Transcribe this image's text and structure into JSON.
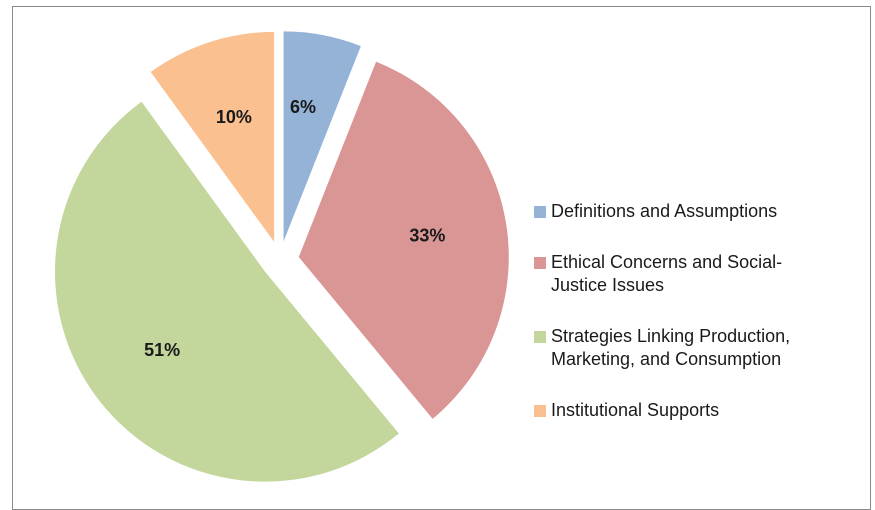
{
  "chart_data": {
    "type": "pie",
    "title": "",
    "legend_position": "right",
    "slices": [
      {
        "label": "Definitions and Assumptions",
        "value": 6,
        "display": "6%",
        "color": "#95b3d7"
      },
      {
        "label": "Ethical Concerns and Social-Justice Issues",
        "value": 33,
        "display": "33%",
        "color": "#d99694"
      },
      {
        "label": "Strategies Linking Production, Marketing, and Consumption",
        "value": 51,
        "display": "51%",
        "color": "#c3d69b"
      },
      {
        "label": "Institutional Supports",
        "value": 10,
        "display": "10%",
        "color": "#fac090"
      }
    ],
    "legend": [
      {
        "lines": [
          "Definitions and Assumptions"
        ]
      },
      {
        "lines": [
          "Ethical Concerns and Social-",
          "Justice Issues"
        ]
      },
      {
        "lines": [
          "Strategies Linking Production,",
          "Marketing, and Consumption"
        ]
      },
      {
        "lines": [
          "Institutional Supports"
        ]
      }
    ]
  }
}
